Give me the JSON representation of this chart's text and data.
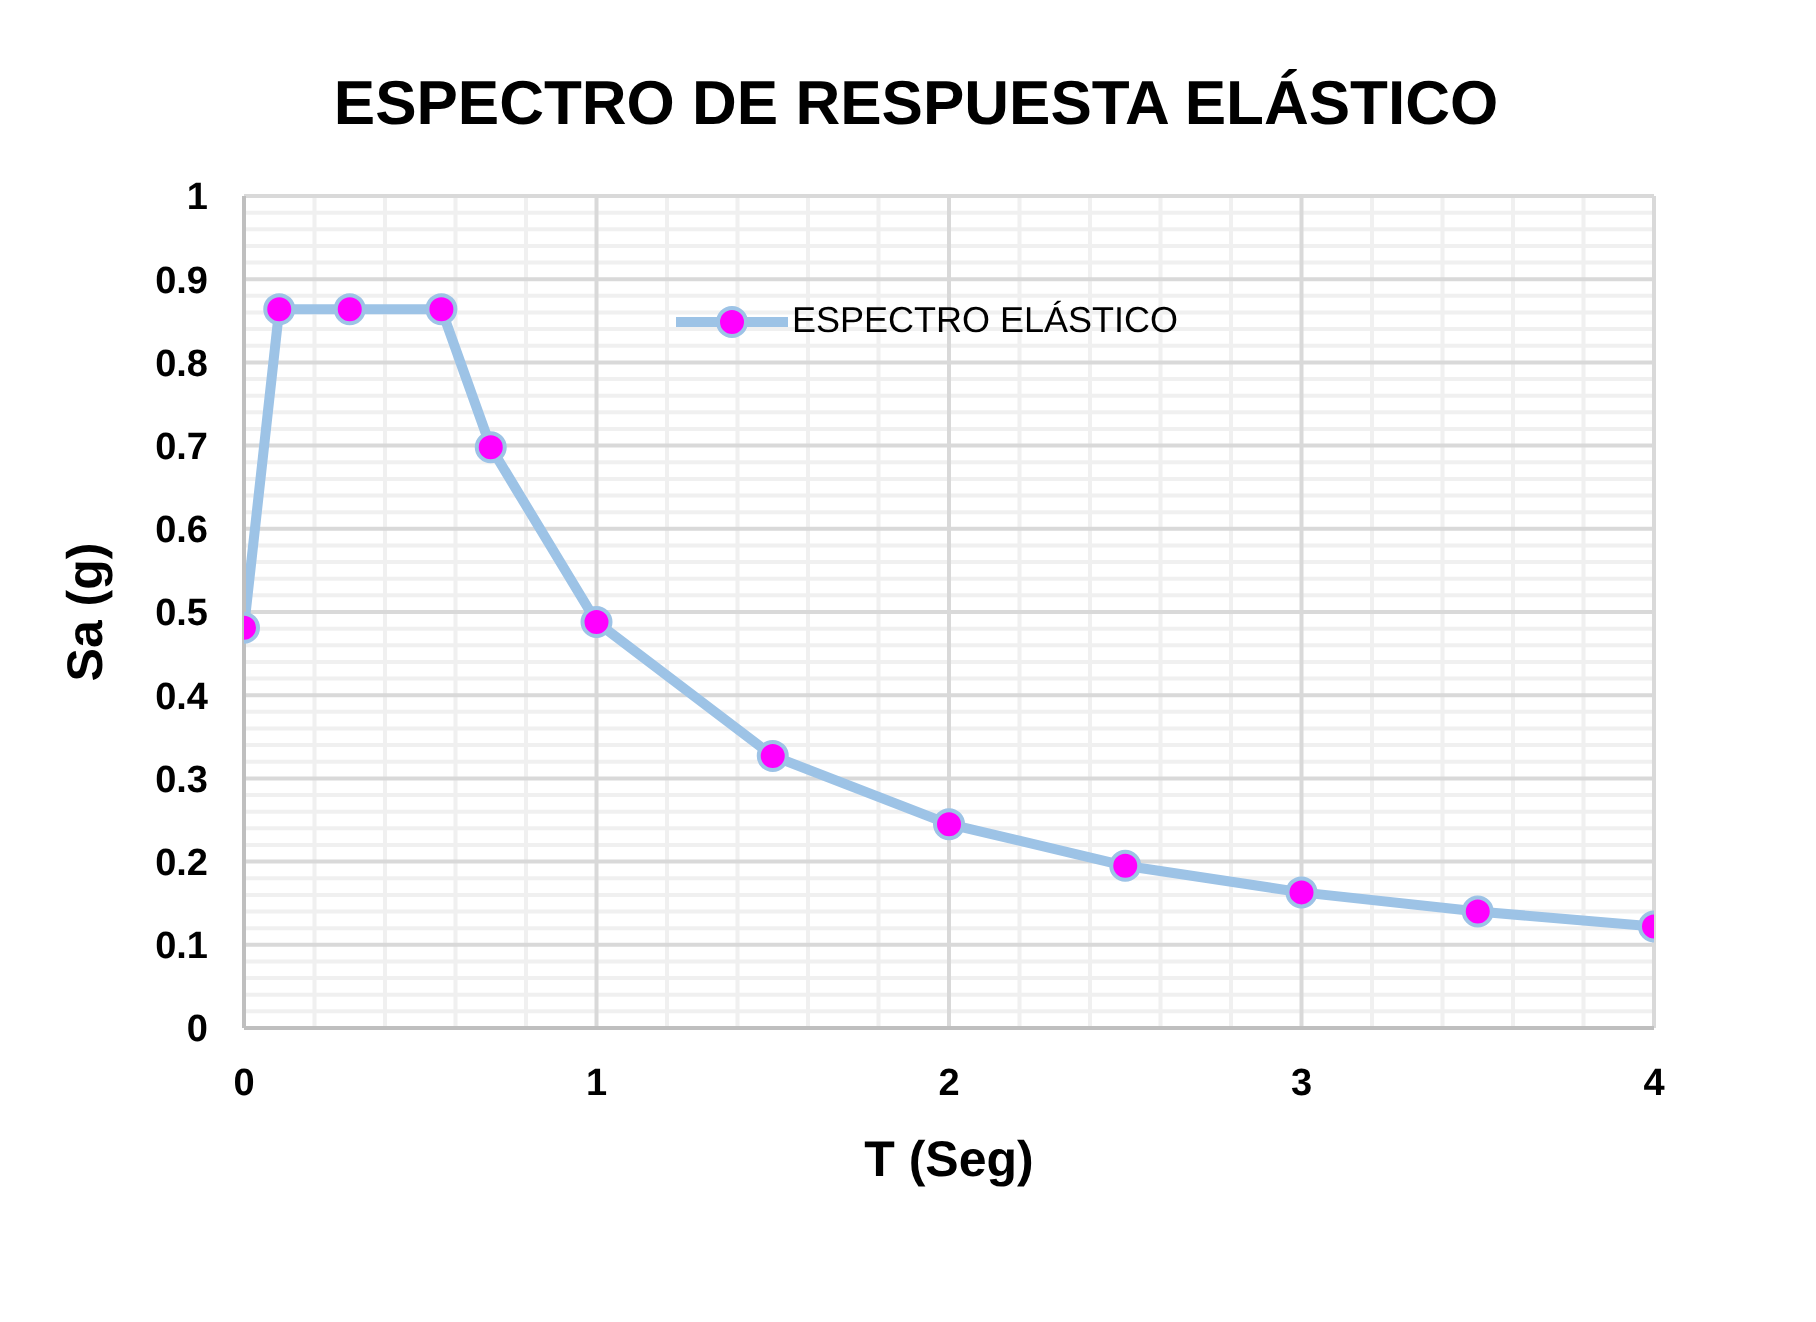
{
  "chart_data": {
    "type": "line",
    "title": "ESPECTRO DE RESPUESTA ELÁSTICO",
    "xlabel": "T (Seg)",
    "ylabel": "Sa (g)",
    "series": [
      {
        "name": "ESPECTRO ELÁSTICO",
        "color": "#9dc3e6",
        "colors": [
          "#ff00ff",
          "#ff00ff",
          "#ff00ff",
          "#ff00ff",
          "#ff00ff",
          "#ff00ff",
          "#ff00ff",
          "#ff00ff",
          "#ff00ff",
          "#ff00ff",
          "#ff00ff",
          "#ff00ff"
        ],
        "x": [
          0,
          0.1,
          0.3,
          0.56,
          0.7,
          1,
          1.5,
          2,
          2.5,
          3,
          3.5,
          4
        ],
        "values": [
          0.481,
          0.864,
          0.864,
          0.864,
          0.698,
          0.488,
          0.327,
          0.245,
          0.195,
          0.163,
          0.14,
          0.122
        ]
      }
    ],
    "xlim": [
      0,
      4
    ],
    "xticks": [
      0,
      1,
      2,
      3,
      4
    ],
    "ylim": [
      0,
      1
    ],
    "yticks": [
      0,
      0.1,
      0.2,
      0.3,
      0.4,
      0.5,
      0.6,
      0.7,
      0.8,
      0.9,
      1
    ],
    "grid": true,
    "legend": "top",
    "marker": "circle",
    "line_style": "solid"
  }
}
